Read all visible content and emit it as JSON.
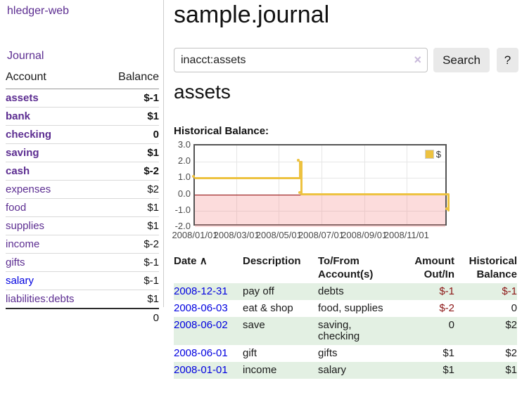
{
  "sidebar": {
    "app_title": "hledger-web",
    "nav": {
      "journal_label": "Journal"
    },
    "accounts_table": {
      "headers": {
        "account": "Account",
        "balance": "Balance"
      },
      "rows": [
        {
          "name": "assets",
          "balance": "$-1"
        },
        {
          "name": "bank",
          "balance": "$1"
        },
        {
          "name": "checking",
          "balance": "0"
        },
        {
          "name": "saving",
          "balance": "$1"
        },
        {
          "name": "cash",
          "balance": "$-2"
        },
        {
          "name": "expenses",
          "balance": "$2"
        },
        {
          "name": "food",
          "balance": "$1"
        },
        {
          "name": "supplies",
          "balance": "$1"
        },
        {
          "name": "income",
          "balance": "$-2"
        },
        {
          "name": "gifts",
          "balance": "$-1"
        },
        {
          "name": "salary",
          "balance": "$-1"
        },
        {
          "name": "liabilities:debts",
          "balance": "$1"
        }
      ],
      "total": "0"
    }
  },
  "main": {
    "title": "sample.journal",
    "search": {
      "value": "inacct:assets",
      "clear_label": "×",
      "button_label": "Search",
      "help_label": "?"
    },
    "account_heading": "assets",
    "chart_heading": "Historical Balance:",
    "transactions": {
      "headers": {
        "date": "Date",
        "sort_arrow": "∧",
        "description": "Description",
        "accounts": "To/From Account(s)",
        "amount": "Amount Out/In",
        "balance": "Historical Balance"
      },
      "rows": [
        {
          "date": "2008-12-31",
          "description": "pay off",
          "accounts": "debts",
          "amount": "$-1",
          "balance": "$-1"
        },
        {
          "date": "2008-06-03",
          "description": "eat & shop",
          "accounts": "food, supplies",
          "amount": "$-2",
          "balance": "0"
        },
        {
          "date": "2008-06-02",
          "description": "save",
          "accounts": "saving,\nchecking",
          "amount": "0",
          "balance": "$2"
        },
        {
          "date": "2008-06-01",
          "description": "gift",
          "accounts": "gifts",
          "amount": "$1",
          "balance": "$2"
        },
        {
          "date": "2008-01-01",
          "description": "income",
          "accounts": "salary",
          "amount": "$1",
          "balance": "$1"
        }
      ]
    }
  },
  "chart_data": {
    "type": "line",
    "title": "Historical Balance:",
    "series": [
      {
        "name": "$",
        "color": "#edc240",
        "step": true,
        "points": [
          {
            "date": "2008-01-01",
            "day": 0,
            "value": 1
          },
          {
            "date": "2008-06-01",
            "day": 152,
            "value": 2
          },
          {
            "date": "2008-06-03",
            "day": 154,
            "value": 0
          },
          {
            "date": "2008-12-31",
            "day": 365,
            "value": -1
          }
        ]
      }
    ],
    "x_max_days": 365,
    "x_ticks": [
      {
        "day": 0,
        "label": "2008/01/01"
      },
      {
        "day": 60,
        "label": "2008/03/01"
      },
      {
        "day": 121,
        "label": "2008/05/01"
      },
      {
        "day": 182,
        "label": "2008/07/01"
      },
      {
        "day": 244,
        "label": "2008/09/01"
      },
      {
        "day": 305,
        "label": "2008/11/01"
      }
    ],
    "y_ticks": [
      {
        "value": 3,
        "label": "3.0"
      },
      {
        "value": 2,
        "label": "2.0"
      },
      {
        "value": 1,
        "label": "1.0"
      },
      {
        "value": 0,
        "label": "0.0"
      },
      {
        "value": -1,
        "label": "-1.0"
      },
      {
        "value": -2,
        "label": "-2.0"
      }
    ],
    "ylim": [
      -2,
      3
    ],
    "grid": true,
    "legend_position": "top-right",
    "negative_region_color": "#ffdddd",
    "zero_line_color": "#8b0000"
  }
}
